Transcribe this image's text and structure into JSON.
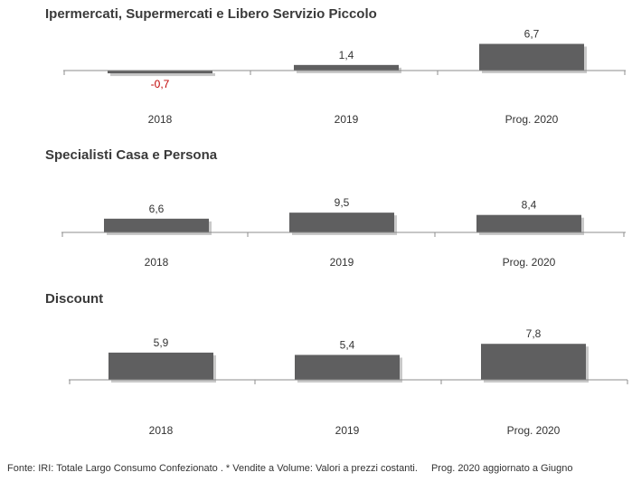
{
  "chart_data": [
    {
      "type": "bar",
      "title": "Ipermercati, Supermercati e Libero Servizio Piccolo",
      "categories": [
        "2018",
        "2019",
        "Prog. 2020"
      ],
      "values": [
        -0.7,
        1.4,
        6.7
      ],
      "value_labels": [
        "-0,7",
        "1,4",
        "6,7"
      ],
      "bar_color": "#5f5f60",
      "negative_label_color": "#c00000",
      "grid": false,
      "legend": "none"
    },
    {
      "type": "bar",
      "title": "Specialisti Casa e Persona",
      "categories": [
        "2018",
        "2019",
        "Prog. 2020"
      ],
      "values": [
        6.6,
        9.5,
        8.4
      ],
      "value_labels": [
        "6,6",
        "9,5",
        "8,4"
      ],
      "bar_color": "#5f5f60",
      "grid": false,
      "legend": "none"
    },
    {
      "type": "bar",
      "title": "Discount",
      "categories": [
        "2018",
        "2019",
        "Prog. 2020"
      ],
      "values": [
        5.9,
        5.4,
        7.8
      ],
      "value_labels": [
        "5,9",
        "5,4",
        "7,8"
      ],
      "bar_color": "#5f5f60",
      "grid": false,
      "legend": "none"
    }
  ],
  "footer": {
    "source": "Fonte: IRI: Totale Largo Consumo Confezionato . * Vendite a Volume: Valori a prezzi costanti.",
    "note": "Prog. 2020 aggiornato a Giugno"
  }
}
